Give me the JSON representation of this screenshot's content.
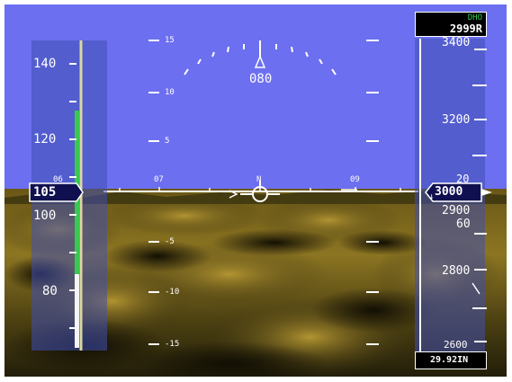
{
  "heading": {
    "value": "080",
    "horizon_labels": [
      "06",
      "07",
      "N",
      "09"
    ]
  },
  "pitch_ladder": {
    "labels_up": [
      "15",
      "10",
      "5"
    ],
    "labels_down": [
      "-5",
      "-10",
      "-15"
    ]
  },
  "airspeed": {
    "current": "105",
    "scale": [
      "140",
      "120",
      "100",
      "80"
    ]
  },
  "altitude": {
    "current": "3000",
    "scale": [
      "3400",
      "3200",
      "2900",
      "2800",
      "2600"
    ],
    "upper_digits": "20",
    "lower_digits": "60",
    "marker": "↓"
  },
  "minimums": {
    "label": "DHO",
    "value": "2999R"
  },
  "barometer": {
    "value": "29.92IN"
  },
  "colors": {
    "sky": "#6c6ff0",
    "terrain_dark": "#2e2a0c",
    "terrain_light": "#a58b2b",
    "tape_bg": "#3f4fb2",
    "speed_trend": "#39c850",
    "altitude_cyan": "#00b2d9"
  }
}
